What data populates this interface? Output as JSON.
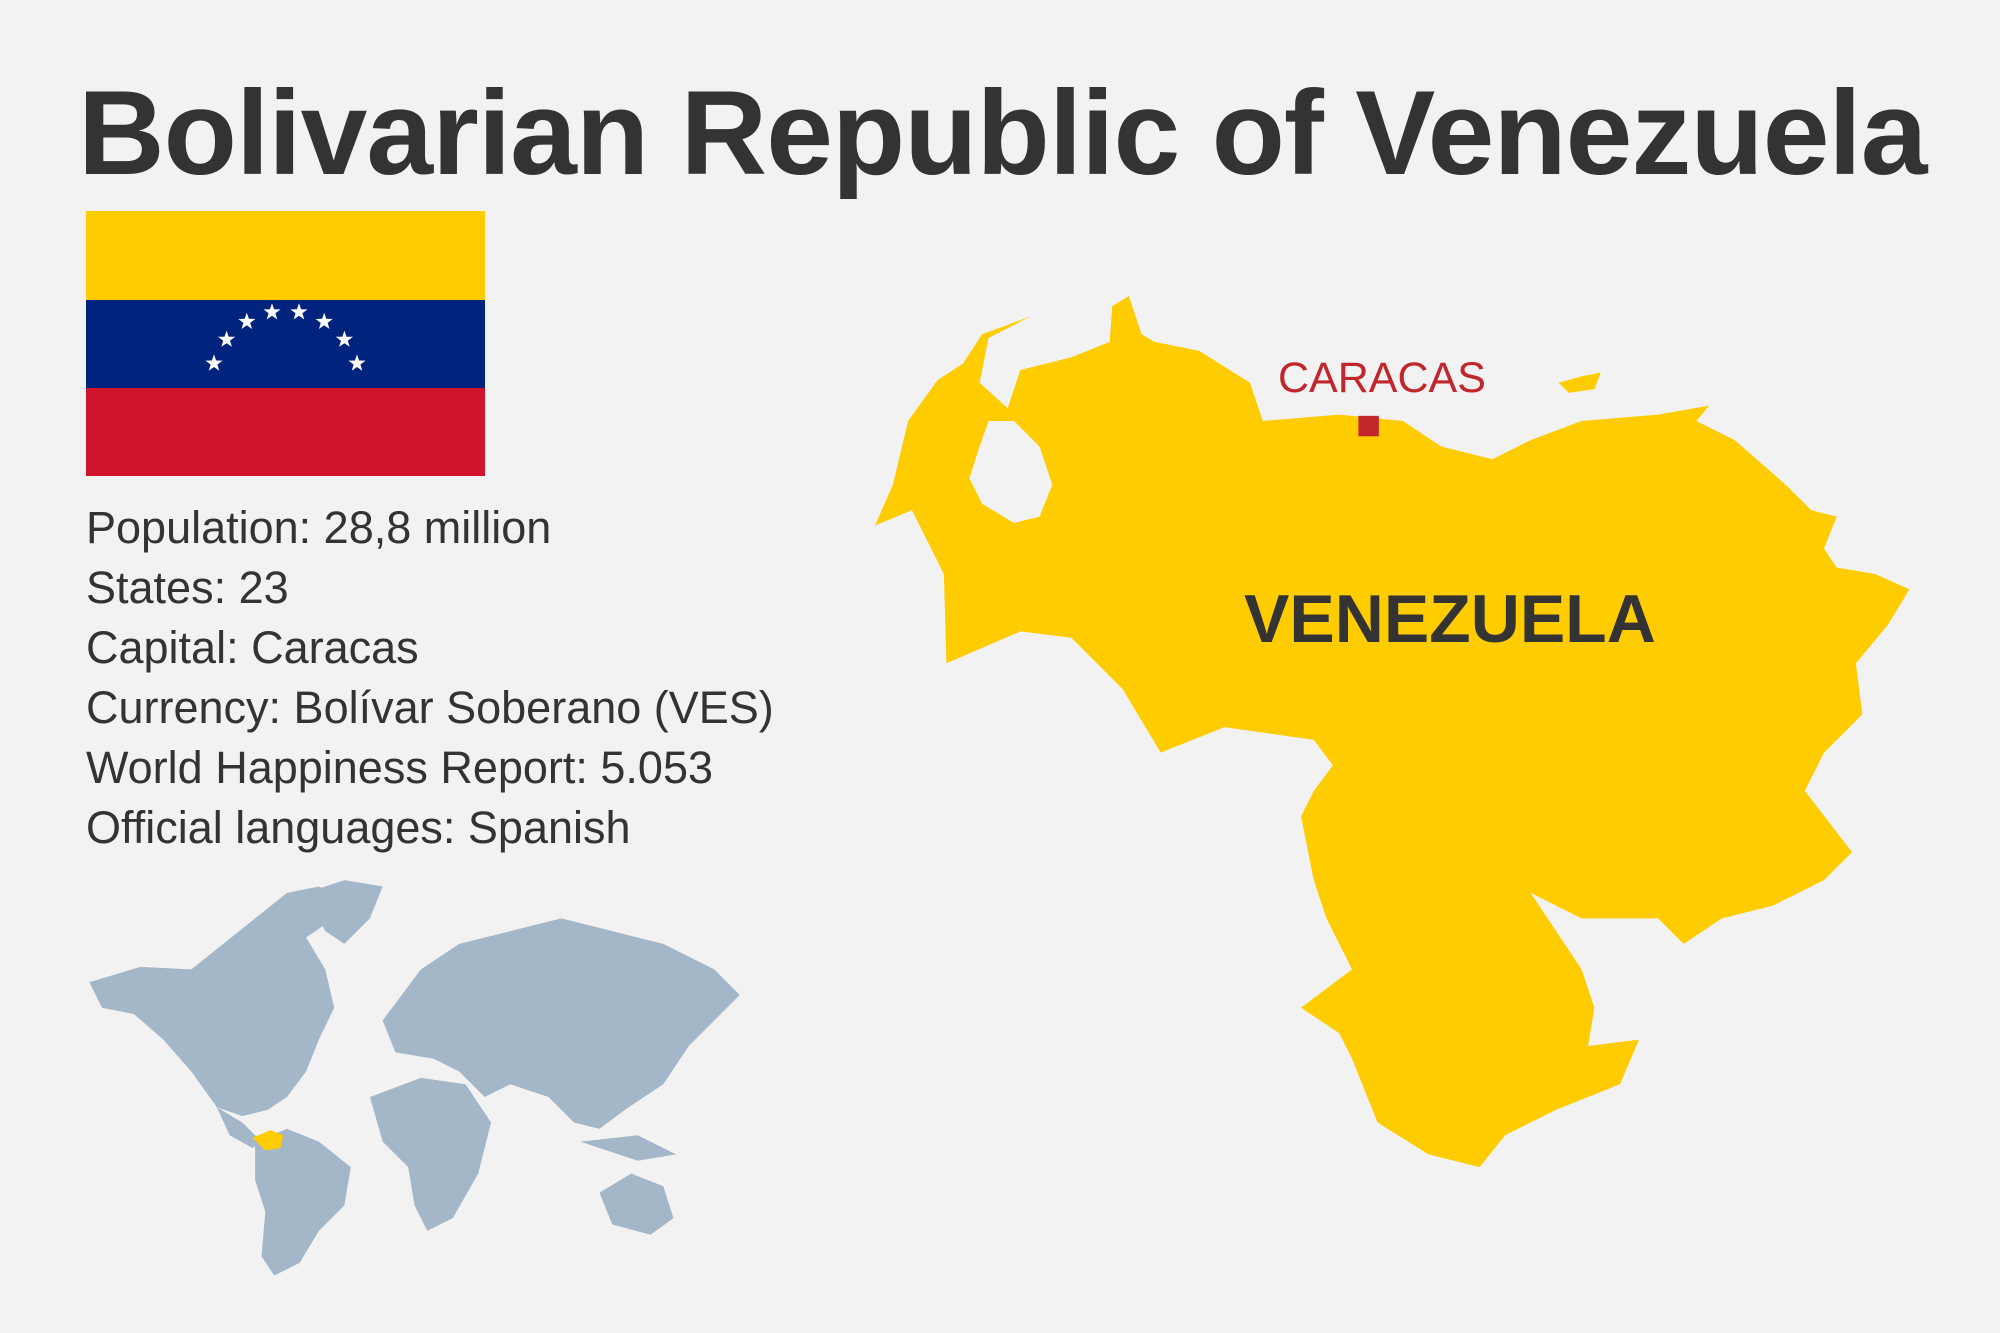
{
  "title": "Bolivarian Republic of Venezuela",
  "flag": {
    "colors": {
      "top": "#ffcc00",
      "middle": "#00247d",
      "bottom": "#cf142b",
      "stars": "#ffffff"
    },
    "star_count": 8
  },
  "info": [
    "Population: 28,8 million",
    "States: 23",
    "Capital: Caracas",
    "Currency: Bolívar Soberano (VES)",
    "World Happiness Report: 5.053",
    "Official languages: Spanish"
  ],
  "map": {
    "country_label": "VENEZUELA",
    "capital_label": "CARACAS",
    "country_color": "#ffcc00",
    "capital_color": "#c0262c"
  },
  "world_map": {
    "land_color": "#a4b7c8",
    "highlight_color": "#ffcc00"
  }
}
